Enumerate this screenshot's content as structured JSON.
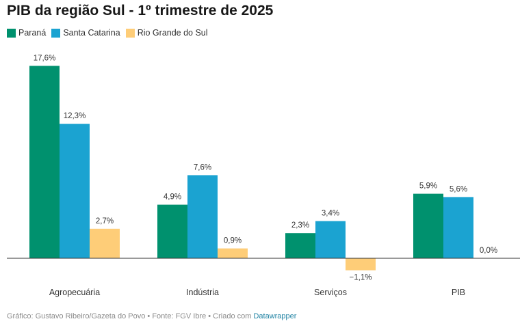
{
  "title": "PIB da região Sul - 1º trimestre de 2025",
  "colors": {
    "parana": "#00916e",
    "santa_catarina": "#1ba3d1",
    "rio_grande_do_sul": "#fecd78",
    "axis": "#333333"
  },
  "chart_data": {
    "type": "bar",
    "title": "PIB da região Sul - 1º trimestre de 2025",
    "categories": [
      "Agropecuária",
      "Indústria",
      "Serviços",
      "PIB"
    ],
    "series": [
      {
        "name": "Paraná",
        "values": [
          17.6,
          4.9,
          2.3,
          5.9
        ],
        "labels": [
          "17,6%",
          "4,9%",
          "2,3%",
          "5,9%"
        ],
        "color": "#00916e"
      },
      {
        "name": "Santa Catarina",
        "values": [
          12.3,
          7.6,
          3.4,
          5.6
        ],
        "labels": [
          "12,3%",
          "7,6%",
          "3,4%",
          "5,6%"
        ],
        "color": "#1ba3d1"
      },
      {
        "name": "Rio Grande do Sul",
        "values": [
          2.7,
          0.9,
          -1.1,
          0.0
        ],
        "labels": [
          "2,7%",
          "0,9%",
          "−1,1%",
          "0,0%"
        ],
        "color": "#fecd78"
      }
    ],
    "ylim": [
      -1.1,
      17.6
    ],
    "grid": false,
    "legend": "top-left"
  },
  "footer": {
    "text": "Gráfico: Gustavo Ribeiro/Gazeta do Povo • Fonte: FGV Ibre • Criado com ",
    "link": "Datawrapper"
  }
}
